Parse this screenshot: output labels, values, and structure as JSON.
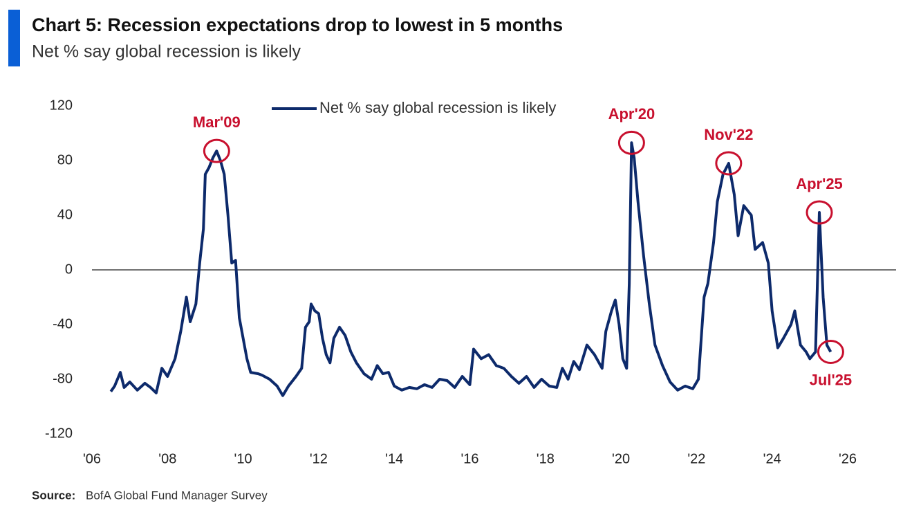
{
  "chart_data": {
    "type": "line",
    "title": "Chart 5: Recession expectations drop to lowest in 5 months",
    "subtitle": "Net % say global recession is likely",
    "source_label": "Source:",
    "source": "BofA Global Fund Manager Survey",
    "x": [
      2006.5,
      2006.6,
      2006.75,
      2006.85,
      2007.0,
      2007.2,
      2007.4,
      2007.55,
      2007.7,
      2007.85,
      2008.0,
      2008.2,
      2008.35,
      2008.5,
      2008.6,
      2008.75,
      2008.85,
      2008.95,
      2009.0,
      2009.1,
      2009.2,
      2009.3,
      2009.4,
      2009.5,
      2009.6,
      2009.7,
      2009.8,
      2009.9,
      2010.0,
      2010.1,
      2010.2,
      2010.4,
      2010.5,
      2010.7,
      2010.9,
      2011.05,
      2011.2,
      2011.4,
      2011.55,
      2011.65,
      2011.75,
      2011.8,
      2011.9,
      2012.0,
      2012.1,
      2012.2,
      2012.3,
      2012.4,
      2012.55,
      2012.7,
      2012.85,
      2013.0,
      2013.2,
      2013.4,
      2013.55,
      2013.7,
      2013.85,
      2014.0,
      2014.2,
      2014.4,
      2014.6,
      2014.8,
      2015.0,
      2015.2,
      2015.4,
      2015.6,
      2015.8,
      2016.0,
      2016.1,
      2016.3,
      2016.5,
      2016.7,
      2016.9,
      2017.1,
      2017.3,
      2017.5,
      2017.7,
      2017.9,
      2018.1,
      2018.3,
      2018.45,
      2018.6,
      2018.75,
      2018.9,
      2019.1,
      2019.3,
      2019.5,
      2019.6,
      2019.75,
      2019.85,
      2019.95,
      2020.05,
      2020.15,
      2020.22,
      2020.28,
      2020.35,
      2020.45,
      2020.6,
      2020.75,
      2020.9,
      2021.1,
      2021.3,
      2021.5,
      2021.7,
      2021.9,
      2022.05,
      2022.2,
      2022.3,
      2022.45,
      2022.55,
      2022.7,
      2022.85,
      2023.0,
      2023.1,
      2023.25,
      2023.45,
      2023.55,
      2023.75,
      2023.9,
      2024.0,
      2024.15,
      2024.3,
      2024.5,
      2024.6,
      2024.75,
      2024.9,
      2025.0,
      2025.15,
      2025.25,
      2025.35,
      2025.45,
      2025.55
    ],
    "series": [
      {
        "name": "Net % say global recession is likely",
        "color": "#0d2a6b",
        "values": [
          -89,
          -85,
          -75,
          -86,
          -82,
          -88,
          -83,
          -86,
          -90,
          -72,
          -78,
          -65,
          -45,
          -20,
          -38,
          -25,
          5,
          30,
          70,
          75,
          82,
          87,
          80,
          70,
          40,
          5,
          7,
          -35,
          -50,
          -65,
          -75,
          -76,
          -77,
          -80,
          -85,
          -92,
          -85,
          -78,
          -72,
          -42,
          -38,
          -25,
          -30,
          -32,
          -50,
          -62,
          -68,
          -50,
          -42,
          -48,
          -60,
          -68,
          -76,
          -80,
          -70,
          -76,
          -75,
          -85,
          -88,
          -86,
          -87,
          -84,
          -86,
          -80,
          -81,
          -86,
          -78,
          -84,
          -58,
          -65,
          -62,
          -70,
          -72,
          -78,
          -83,
          -78,
          -86,
          -80,
          -85,
          -86,
          -72,
          -80,
          -67,
          -73,
          -55,
          -62,
          -72,
          -45,
          -30,
          -22,
          -40,
          -65,
          -72,
          -10,
          93,
          82,
          50,
          10,
          -25,
          -55,
          -70,
          -82,
          -88,
          -85,
          -87,
          -80,
          -20,
          -10,
          20,
          50,
          70,
          78,
          55,
          25,
          47,
          40,
          15,
          20,
          5,
          -30,
          -57,
          -50,
          -40,
          -30,
          -55,
          -60,
          -65,
          -60,
          42,
          -20,
          -55,
          -60
        ]
      }
    ],
    "xlim": [
      2006,
      2026
    ],
    "xticks": [
      {
        "value": 2006,
        "label": "'06"
      },
      {
        "value": 2008,
        "label": "'08"
      },
      {
        "value": 2010,
        "label": "'10"
      },
      {
        "value": 2012,
        "label": "'12"
      },
      {
        "value": 2014,
        "label": "'14"
      },
      {
        "value": 2016,
        "label": "'16"
      },
      {
        "value": 2018,
        "label": "'18"
      },
      {
        "value": 2020,
        "label": "'20"
      },
      {
        "value": 2022,
        "label": "'22"
      },
      {
        "value": 2024,
        "label": "'24"
      },
      {
        "value": 2026,
        "label": "'26"
      }
    ],
    "ylim": [
      -120,
      120
    ],
    "yticks": [
      -120,
      -80,
      -40,
      0,
      40,
      80,
      120
    ],
    "annotations": [
      {
        "text": "Mar'09",
        "x": 2009.3,
        "y": 87
      },
      {
        "text": "Apr'20",
        "x": 2020.28,
        "y": 93
      },
      {
        "text": "Nov'22",
        "x": 2022.85,
        "y": 78
      },
      {
        "text": "Apr'25",
        "x": 2025.25,
        "y": 42
      },
      {
        "text": "Jul'25",
        "x": 2025.55,
        "y": -60
      }
    ],
    "grid": false,
    "legend": "top"
  }
}
